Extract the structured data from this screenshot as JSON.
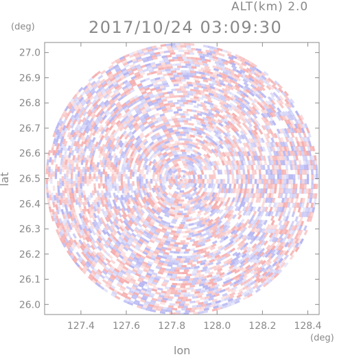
{
  "header": {
    "altitude_label": "ALT(km) 2.0",
    "timestamp": "2017/10/24 03:09:30",
    "y_unit": "(deg)",
    "x_unit": "(deg)"
  },
  "chart_data": {
    "type": "heatmap",
    "title": "2017/10/24 03:09:30",
    "xlabel": "lon",
    "ylabel": "lat",
    "xlim": [
      127.24,
      128.45
    ],
    "ylim": [
      25.96,
      27.04
    ],
    "x_ticks": [
      "127.4",
      "127.6",
      "127.8",
      "128.0",
      "128.2",
      "128.4"
    ],
    "y_ticks": [
      "26.0",
      "26.1",
      "26.2",
      "26.3",
      "26.4",
      "26.5",
      "26.6",
      "26.7",
      "26.8",
      "26.9",
      "27.0"
    ],
    "center": {
      "lon": 127.845,
      "lat": 26.498
    },
    "radius_deg_lat": 0.54,
    "colors": {
      "positive": "#f4a0a0",
      "negative": "#a8a8f0",
      "neutral": "#ffffff",
      "frame": "#888888"
    }
  }
}
